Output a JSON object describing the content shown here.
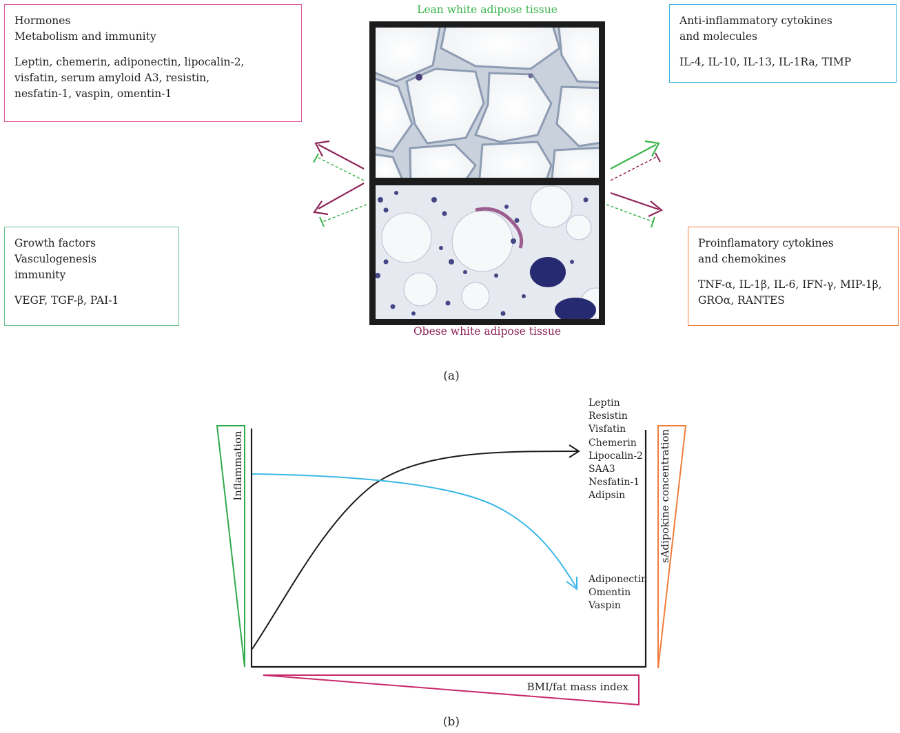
{
  "panel_a": {
    "label": "(a)",
    "lean_title": "Lean white adipose tissue",
    "obese_title": "Obese white adipose tissue",
    "boxes": {
      "hormones": {
        "lines": [
          "Hormones",
          "Metabolism and immunity"
        ],
        "items": [
          "Leptin, chemerin, adiponectin, lipocalin-2,",
          "visfatin, serum amyloid A3, resistin,",
          "nesfatin-1, vaspin, omentin-1"
        ],
        "color": "#e15a9a"
      },
      "anti_inflammatory": {
        "lines": [
          "Anti-inflammatory cytokines",
          "and molecules"
        ],
        "items": [
          "IL-4, IL-10, IL-13, IL-1Ra, TIMP"
        ],
        "color": "#39b7dd"
      },
      "growth_factors": {
        "lines": [
          "Growth factors",
          "Vasculogenesis",
          "immunity"
        ],
        "items": [
          "VEGF, TGF-β, PAI-1"
        ],
        "color": "#6ec28f"
      },
      "proinflammatory": {
        "lines": [
          "Proinflamatory cytokines",
          "and chemokines"
        ],
        "items": [
          "TNF-α, IL-1β, IL-6, IFN-γ, MIP-1β,",
          "GROα, RANTES"
        ],
        "color": "#f07c3a"
      }
    },
    "colors": {
      "lean": "#39b34a",
      "obese": "#8e2458"
    }
  },
  "panel_b": {
    "label": "(b)",
    "left_axis_label": "Inflammation",
    "right_axis_label": "sAdipokine concentration",
    "bottom_axis_label": "BMI/fat mass index",
    "increasing_adipokines": [
      "Leptin",
      "Resistin",
      "Visfatin",
      "Chemerin",
      "Lipocalin-2",
      "SAA3",
      "Nesfatin-1",
      "Adipsin"
    ],
    "decreasing_adipokines": [
      "Adiponectin",
      "Omentin",
      "Vaspin"
    ],
    "colors": {
      "inflammation": "#2eaa4a",
      "adipokine_concentration": "#f07c3a",
      "bmi": "#c8286a",
      "increasing_curve": "#1a1a1a",
      "decreasing_curve": "#39b7e6"
    }
  }
}
